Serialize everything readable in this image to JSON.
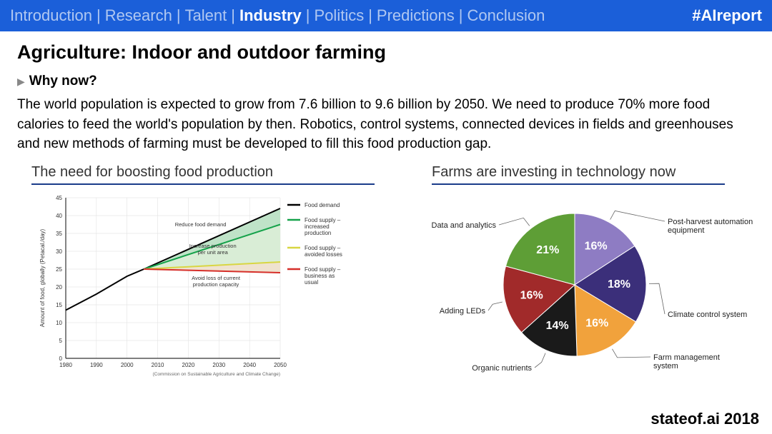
{
  "colors": {
    "topbar_bg": "#1b5fd9",
    "title_underline": "#1a3b8a",
    "text": "#222222",
    "axis": "#333333",
    "grid": "#cccccc"
  },
  "topbar": {
    "items": [
      "Introduction",
      "Research",
      "Talent",
      "Industry",
      "Politics",
      "Predictions",
      "Conclusion"
    ],
    "active_index": 3,
    "hashtag": "#AIreport"
  },
  "title": "Agriculture: Indoor and outdoor farming",
  "subhead": "Why now?",
  "body": "The world population is expected to grow from 7.6 billion to 9.6 billion by 2050. We need to produce 70% more food calories to feed the world's population by then. Robotics, control systems, connected devices in fields and greenhouses and new methods of farming must be developed to fill this food production gap.",
  "line_chart": {
    "title": "The need for boosting food production",
    "x_label_years": [
      "1980",
      "1990",
      "2000",
      "2010",
      "2020",
      "2030",
      "2040",
      "2050"
    ],
    "y_label": "Amount of food, globally (Petacal./day)",
    "y_ticks": [
      0,
      5,
      10,
      15,
      20,
      25,
      30,
      35,
      40,
      45
    ],
    "ylim": [
      0,
      45
    ],
    "xlim": [
      1980,
      2050
    ],
    "grid_color": "#dddddd",
    "axis_color": "#333333",
    "tick_font_size": 8,
    "label_font_size": 8,
    "legend_font_size": 8,
    "series": {
      "food_demand": {
        "color": "#000000",
        "points": [
          [
            1980,
            13.5
          ],
          [
            1990,
            18
          ],
          [
            2000,
            23
          ],
          [
            2005.5,
            25
          ],
          [
            2050,
            42
          ]
        ],
        "width": 2
      },
      "supply_increased": {
        "color": "#15a24a",
        "points": [
          [
            2005.5,
            25
          ],
          [
            2050,
            37.5
          ]
        ],
        "width": 2
      },
      "supply_avoided": {
        "color": "#d8d642",
        "points": [
          [
            2005.5,
            25
          ],
          [
            2050,
            27
          ]
        ],
        "width": 2
      },
      "supply_business": {
        "color": "#d62f2a",
        "points": [
          [
            2005.5,
            25
          ],
          [
            2050,
            24
          ]
        ],
        "width": 2
      }
    },
    "fills": {
      "top_green": {
        "color": "#bfe3c8",
        "between": [
          "food_demand_tail",
          "supply_increased"
        ]
      },
      "mid_green": {
        "color": "#d9edd6",
        "between": [
          "supply_increased",
          "supply_avoided"
        ]
      },
      "bot_tan": {
        "color": "#efe2cf",
        "between": [
          "supply_avoided",
          "supply_business"
        ]
      }
    },
    "annotations": [
      {
        "text": "Reduce food demand",
        "x": 2024,
        "y": 37
      },
      {
        "text": "Increase production\nper unit area",
        "x": 2028,
        "y": 31
      },
      {
        "text": "Avoid loss of current\nproduction capacity",
        "x": 2029,
        "y": 22
      }
    ],
    "legend": [
      {
        "label": "Food demand",
        "color": "#000000"
      },
      {
        "label": "Food supply –\nincreased\nproduction",
        "color": "#15a24a"
      },
      {
        "label": "Food supply –\navoided losses",
        "color": "#d8d642"
      },
      {
        "label": "Food supply –\nbusiness as\nusual",
        "color": "#d62f2a"
      }
    ],
    "source_note": "(Commission on Sustainable Agriculture and Climate Change)"
  },
  "pie_chart": {
    "title": "Farms are investing in technology now",
    "slices": [
      {
        "label": "Post-harvest automation\nequipment",
        "value": 16,
        "color": "#8e7cc3",
        "percent_label": "16%"
      },
      {
        "label": "Climate control system",
        "value": 18,
        "color": "#3b2f7a",
        "percent_label": "18%"
      },
      {
        "label": "Farm management\nsystem",
        "value": 16,
        "color": "#f1a23c",
        "percent_label": "16%"
      },
      {
        "label": "Organic nutrients",
        "value": 14,
        "color": "#1a1a1a",
        "percent_label": "14%"
      },
      {
        "label": "Adding LEDs",
        "value": 16,
        "color": "#a12a2a",
        "percent_label": "16%"
      },
      {
        "label": "Data and analytics",
        "value": 21,
        "color": "#5e9e36",
        "percent_label": "21%"
      }
    ],
    "percent_font_size": 16,
    "percent_color": "#ffffff",
    "label_font_size": 11,
    "label_color": "#222222",
    "leader_color": "#666666",
    "start_angle_deg": -90
  },
  "footer": "stateof.ai 2018"
}
